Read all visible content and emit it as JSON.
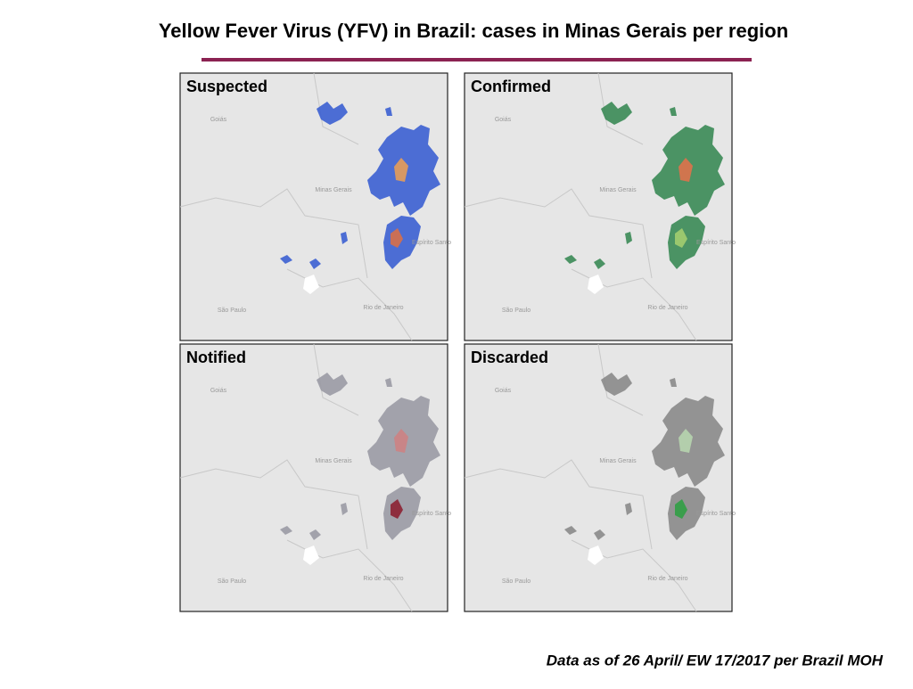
{
  "header": {
    "title": "Yellow Fever Virus (YFV) in Brazil: cases in Minas Gerais per region"
  },
  "panels": [
    {
      "label": "Suspected"
    },
    {
      "label": "Confirmed"
    },
    {
      "label": "Notified"
    },
    {
      "label": "Discarded"
    }
  ],
  "map_labels": [
    "Goiás",
    "Minas Gerais",
    "Espírito Santo",
    "São Paulo",
    "Rio de Janeiro"
  ],
  "footnote": "Data as of 26 April/ EW 17/2017 per Brazil MOH"
}
